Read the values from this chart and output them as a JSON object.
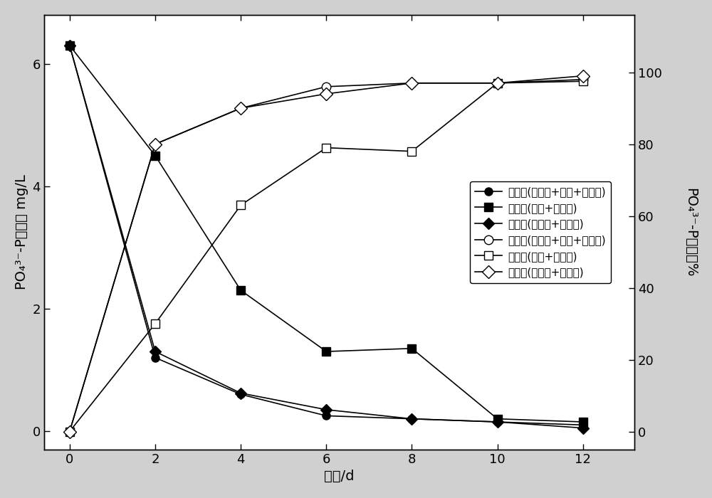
{
  "x": [
    0,
    2,
    4,
    6,
    8,
    10,
    12
  ],
  "residual_pyrite_sulfur_vivianite": [
    6.3,
    1.2,
    0.6,
    0.25,
    0.2,
    0.15,
    0.1
  ],
  "residual_sulfur_vivianite": [
    6.3,
    4.5,
    2.3,
    1.3,
    1.35,
    0.2,
    0.15
  ],
  "residual_pyrite_vivianite": [
    6.3,
    1.3,
    0.62,
    0.35,
    0.2,
    0.15,
    0.05
  ],
  "removal_pyrite_sulfur_vivianite": [
    0,
    80,
    90,
    96,
    97,
    97,
    98
  ],
  "removal_sulfur_vivianite": [
    0,
    30,
    63,
    79,
    78,
    97,
    97.5
  ],
  "removal_pyrite_vivianite": [
    0,
    80,
    90,
    94,
    97,
    97,
    99
  ],
  "ylim_left": [
    -0.3,
    6.8
  ],
  "ylim_right": [
    -5,
    116
  ],
  "yticks_left": [
    0,
    2,
    4,
    6
  ],
  "yticks_right": [
    0,
    20,
    40,
    60,
    80,
    100
  ],
  "xlabel": "时间/d",
  "ylabel_left": "PO₄³⁻-P残余量 mg/L",
  "ylabel_right": "PO₄³⁻-P去除率%",
  "legend_labels": [
    "残余量(黄铁矿+硫磺+菱铁矿)",
    "残余量(硫磺+菱铁矿)",
    "残余量(黄铁矿+菱铁矿)",
    "去除率(黄铁矿+硫磺+菱铁矿)",
    "去除率(硫磺+菱铁矿)",
    "去除率(黄铁矿+菱铁矿)"
  ],
  "xticks": [
    0,
    2,
    4,
    6,
    8,
    10,
    12
  ],
  "outer_bg": "#d0d0d0",
  "inner_bg": "#ffffff",
  "line_color": "black",
  "fontsize": 14,
  "tick_fontsize": 13,
  "legend_fontsize": 11,
  "lw": 1.2,
  "ms_filled": 8,
  "ms_open": 9
}
